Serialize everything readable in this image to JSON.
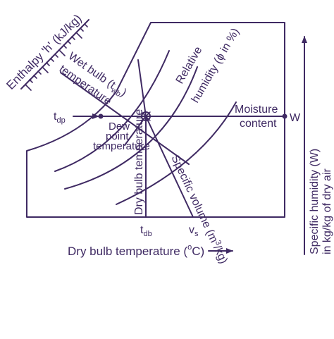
{
  "colors": {
    "ink": "#3f2a63",
    "background": "#ffffff"
  },
  "labels": {
    "enthalpy": "Enthalpy 'h' (kJ/kg)",
    "wet_bulb_line1": "Wet bulb (t",
    "wet_bulb_sub": "wb",
    "wet_bulb_close": ")",
    "wet_bulb_line2": "temperature",
    "relative_humidity_line1": "Relative",
    "relative_humidity_line2": "humidity (ϕ in %)",
    "tdp_main": "t",
    "tdp_sub": "dp",
    "dew_point_line1": "Dew",
    "dew_point_line2": "point",
    "dew_point_line3": "temperature",
    "moisture_line1": "Moisture",
    "moisture_line2": "content",
    "w_marker": "W",
    "specific_humidity_line1": "Specific humidity (W)",
    "specific_humidity_line2": "in kg/kg of dry air",
    "dry_bulb_vertical": "Dry bulb temperature",
    "specific_volume": "Specific volume (m",
    "specific_volume_sup": "3",
    "specific_volume_tail": "/kg)",
    "tdb_main": "t",
    "tdb_sub": "db",
    "vs_main": "v",
    "vs_sub": "s",
    "x_axis_main": "Dry bulb temperature (",
    "x_axis_sup": "o",
    "x_axis_tail": "C)"
  }
}
